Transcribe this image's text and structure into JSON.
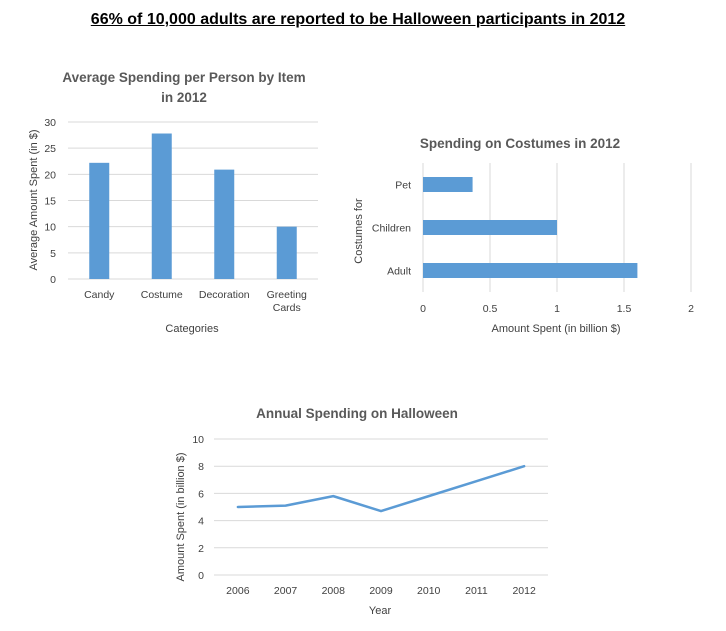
{
  "page": {
    "title": "66% of 10,000 adults are reported to be Halloween participants in 2012"
  },
  "chart_data": [
    {
      "type": "bar",
      "title": "Average Spending per Person by Item in 2012",
      "title_lines": [
        "Average Spending per Person by Item",
        "in 2012"
      ],
      "categories": [
        "Candy",
        "Costume",
        "Decoration",
        "Greeting Cards"
      ],
      "category_lines": [
        [
          "Candy"
        ],
        [
          "Costume"
        ],
        [
          "Decoration"
        ],
        [
          "Greeting",
          "Cards"
        ]
      ],
      "values": [
        22.2,
        27.8,
        20.9,
        10.0
      ],
      "xlabel": "Categories",
      "ylabel": "Average Amount Spent (in $)",
      "ylim": [
        0,
        30
      ],
      "yticks": [
        0,
        5,
        10,
        15,
        20,
        25,
        30
      ],
      "grid": true,
      "color": "#5b9bd5"
    },
    {
      "type": "bar",
      "orientation": "horizontal",
      "title": "Spending on Costumes in 2012",
      "categories": [
        "Adult",
        "Children",
        "Pet"
      ],
      "values": [
        1.6,
        1.0,
        0.37
      ],
      "xlabel": "Amount Spent (in billion $)",
      "ylabel": "Costumes for",
      "xlim": [
        0,
        2
      ],
      "xticks": [
        0,
        0.5,
        1,
        1.5,
        2
      ],
      "xtick_labels": [
        "0",
        "0.5",
        "1",
        "1.5",
        "2"
      ],
      "grid": true,
      "color": "#5b9bd5"
    },
    {
      "type": "line",
      "title": "Annual Spending on Halloween",
      "x": [
        "2006",
        "2007",
        "2008",
        "2009",
        "2010",
        "2011",
        "2012"
      ],
      "values": [
        5.0,
        5.1,
        5.8,
        4.7,
        5.8,
        6.9,
        8.0
      ],
      "xlabel": "Year",
      "ylabel": "Amount Spent (in billion $)",
      "ylim": [
        0,
        10
      ],
      "yticks": [
        0,
        2,
        4,
        6,
        8,
        10
      ],
      "grid": true,
      "color": "#5b9bd5"
    }
  ]
}
